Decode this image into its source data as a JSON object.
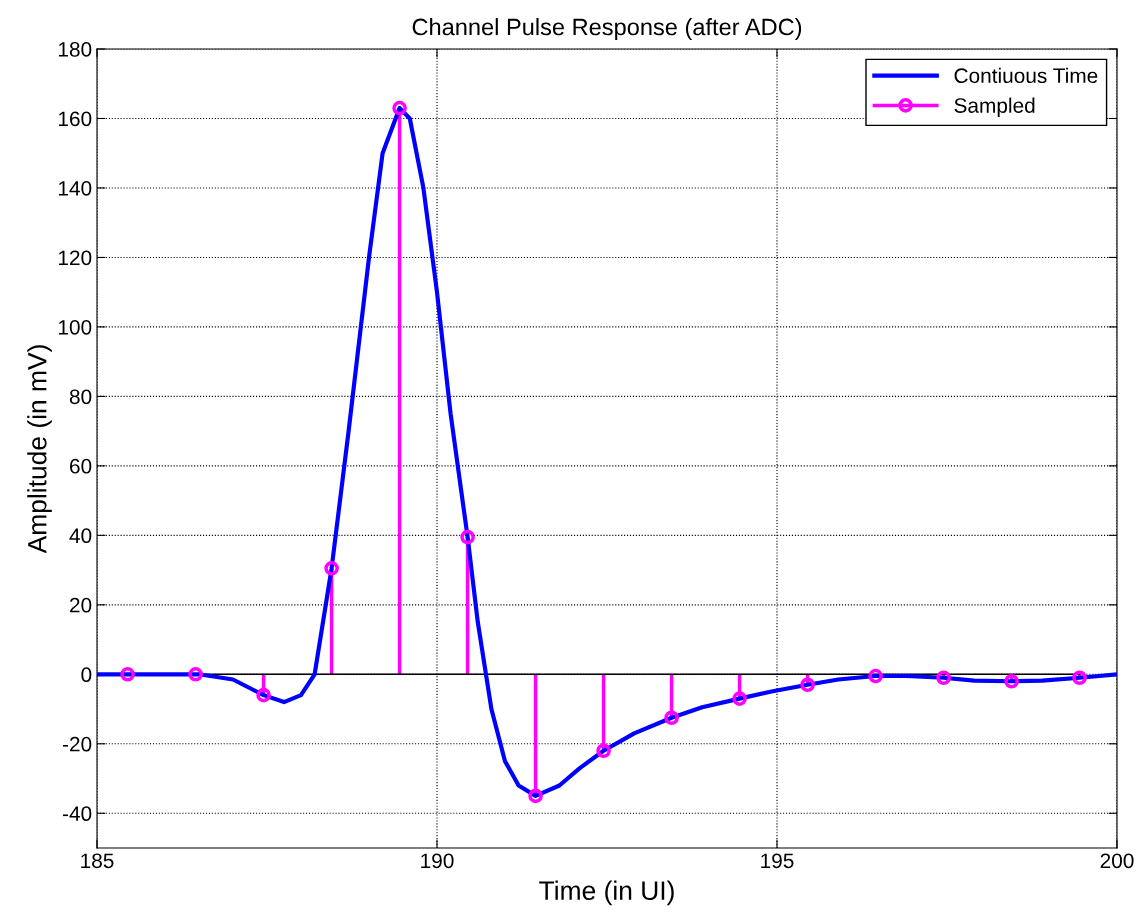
{
  "chart_data": {
    "type": "line",
    "title": "Channel Pulse Response (after ADC)",
    "xlabel": "Time (in UI)",
    "ylabel": "Amplitude (in mV)",
    "xlim": [
      185,
      200
    ],
    "xticks": [
      185,
      190,
      195,
      200
    ],
    "ylim": [
      -50,
      180
    ],
    "yticks": [
      -40,
      -20,
      0,
      20,
      40,
      60,
      80,
      100,
      120,
      140,
      160,
      180
    ],
    "grid": true,
    "legend": "top right",
    "series": [
      {
        "name": "Contiuous Time",
        "color": "#0000ff",
        "marker": "none",
        "x": [
          185,
          186,
          186.5,
          187,
          187.45,
          187.75,
          188,
          188.2,
          188.45,
          188.7,
          189,
          189.2,
          189.45,
          189.6,
          189.8,
          190,
          190.2,
          190.45,
          190.6,
          190.8,
          191,
          191.2,
          191.45,
          191.8,
          192.1,
          192.45,
          192.9,
          193.45,
          193.9,
          194.45,
          194.9,
          195.45,
          195.9,
          196.45,
          196.9,
          197.45,
          197.9,
          198.45,
          198.9,
          199.45,
          200
        ],
        "values": [
          0,
          0,
          0,
          -1.5,
          -6,
          -8,
          -6,
          0,
          30.5,
          70,
          120,
          150,
          163,
          160,
          140,
          110,
          75,
          39.5,
          15,
          -10,
          -25,
          -32,
          -35,
          -32,
          -27,
          -22,
          -17,
          -12.5,
          -9.5,
          -7,
          -5,
          -3,
          -1.5,
          -0.5,
          -0.5,
          -1,
          -1.8,
          -2,
          -1.8,
          -1,
          0
        ]
      },
      {
        "name": "Sampled",
        "type": "lollipop",
        "color": "#ff00ff",
        "marker": "circle",
        "x": [
          185.45,
          186.45,
          187.45,
          188.45,
          189.45,
          190.45,
          191.45,
          192.45,
          193.45,
          194.45,
          195.45,
          196.45,
          197.45,
          198.45,
          199.45
        ],
        "values": [
          0,
          0,
          -6,
          30.5,
          163,
          39.5,
          -35,
          -22,
          -12.5,
          -7,
          -3,
          -0.5,
          -1,
          -2,
          -1
        ]
      }
    ]
  }
}
